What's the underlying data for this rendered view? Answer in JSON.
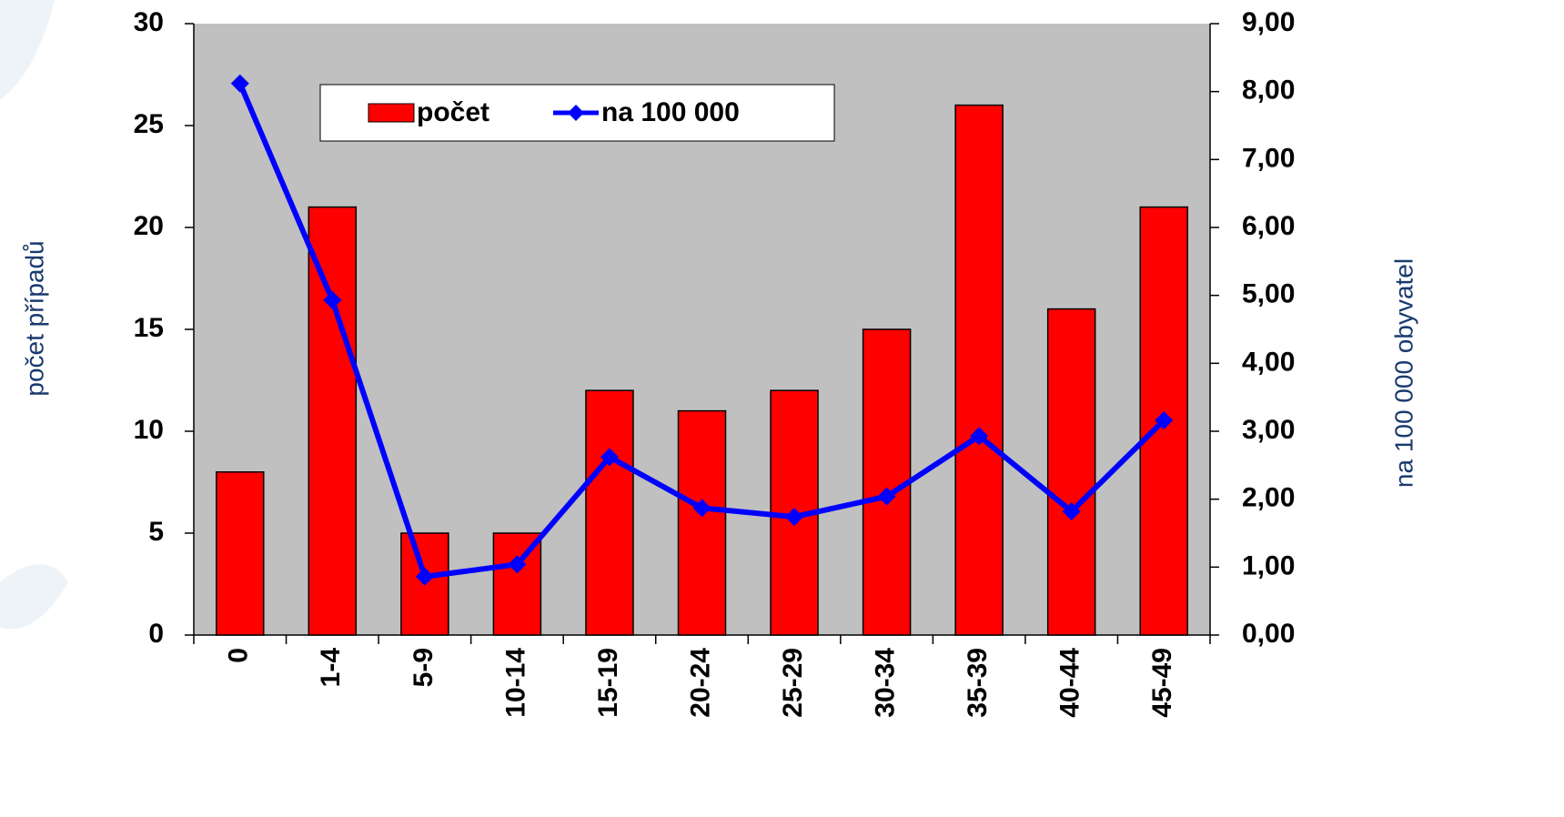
{
  "chart_data": {
    "type": "bar",
    "y_label": "počet případů",
    "y2_label": "na 100  000 obyvatel",
    "categories": [
      "0",
      "1-4",
      "5-9",
      "10-14",
      "15-19",
      "20-24",
      "25-29",
      "30-34",
      "35-39",
      "40-44",
      "45-49"
    ],
    "series": [
      {
        "name": "počet",
        "type": "bar",
        "color": "#ff0000",
        "values": [
          8,
          21,
          5,
          5,
          12,
          11,
          12,
          15,
          26,
          16,
          21
        ]
      },
      {
        "name": "na 100 000",
        "type": "line",
        "axis": "y2",
        "color": "#0000ff",
        "values": [
          8.12,
          4.93,
          0.86,
          1.04,
          2.62,
          1.87,
          1.74,
          2.04,
          2.93,
          1.82,
          3.16
        ]
      }
    ],
    "ylim": [
      0,
      30
    ],
    "yticks": [
      0,
      5,
      10,
      15,
      20,
      25,
      30
    ],
    "y2lim": [
      0,
      9
    ],
    "y2ticks": [
      {
        "value": 0,
        "label": "0,00"
      },
      {
        "value": 1,
        "label": "1,00"
      },
      {
        "value": 2,
        "label": "2,00"
      },
      {
        "value": 3,
        "label": "3,00"
      },
      {
        "value": 4,
        "label": "4,00"
      },
      {
        "value": 5,
        "label": "5,00"
      },
      {
        "value": 6,
        "label": "6,00"
      },
      {
        "value": 7,
        "label": "7,00"
      },
      {
        "value": 8,
        "label": "8,00"
      },
      {
        "value": 9,
        "label": "9,00"
      }
    ],
    "plot_background": "#c0c0c0",
    "legend": "top"
  }
}
